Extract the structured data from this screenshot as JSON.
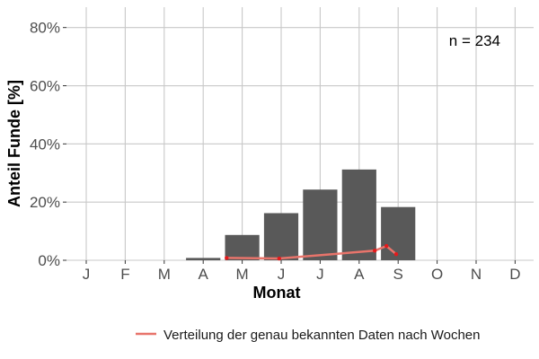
{
  "chart_data": {
    "type": "bar",
    "xlabel": "Monat",
    "ylabel": "Anteil Funde [%]",
    "categories": [
      "J",
      "F",
      "M",
      "A",
      "M",
      "J",
      "J",
      "A",
      "S",
      "O",
      "N",
      "D"
    ],
    "values": [
      0,
      0,
      0,
      0.8,
      8.7,
      16.2,
      24.3,
      31.2,
      18.3,
      0,
      0,
      0
    ],
    "ylim": [
      0,
      87
    ],
    "yticks": [
      0,
      20,
      40,
      60,
      80
    ],
    "ytick_labels": [
      "0%",
      "20%",
      "40%",
      "60%",
      "80%"
    ],
    "annotation": "n = 234",
    "grid": true,
    "legend_position": "bottom",
    "bar_color": "#595959",
    "line_series": {
      "name": "Verteilung der genau bekannten Daten nach Wochen",
      "color": "#e8746b",
      "point_color": "#e41a1c",
      "x": [
        3.6,
        4.95,
        7.4,
        7.7,
        7.95
      ],
      "values": [
        0.8,
        0.6,
        3.3,
        4.9,
        2.1
      ]
    }
  }
}
